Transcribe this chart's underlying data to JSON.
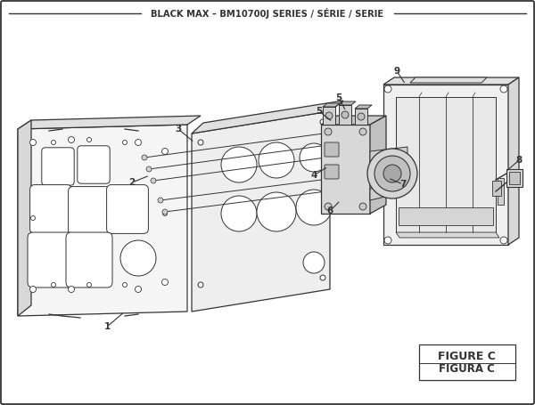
{
  "title": "BLACK MAX – BM10700J SERIES / SÉRIE / SERIE",
  "figure_label_1": "FIGURE C",
  "figure_label_2": "FIGURA C",
  "bg_color": "#ffffff",
  "border_color": "#333333",
  "line_color": "#333333",
  "fill_light": "#f2f2f2",
  "fill_mid": "#e0e0e0",
  "fill_dark": "#cccccc",
  "fill_darker": "#b8b8b8"
}
